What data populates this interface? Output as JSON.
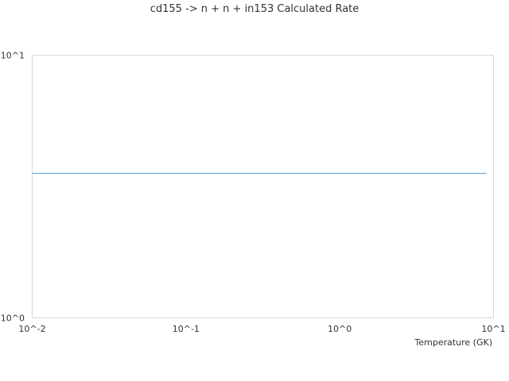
{
  "chart_data": {
    "type": "line",
    "title": "cd155 -> n + n + in153 Calculated Rate",
    "xlabel": "Temperature (GK)",
    "ylabel": "",
    "x_scale": "log",
    "y_scale": "log",
    "xlim": [
      0.01,
      10
    ],
    "ylim": [
      1,
      10
    ],
    "x_ticks": [
      {
        "value": 0.01,
        "label": "10^-2"
      },
      {
        "value": 0.1,
        "label": "10^-1"
      },
      {
        "value": 1,
        "label": "10^0"
      },
      {
        "value": 10,
        "label": "10^1"
      }
    ],
    "y_ticks": [
      {
        "value": 1,
        "label": "10^0"
      },
      {
        "value": 10,
        "label": "10^1"
      }
    ],
    "grid": false,
    "series": [
      {
        "color": "#5b9bd5",
        "x": [
          0.01,
          0.1,
          1,
          9
        ],
        "y": [
          3.55,
          3.55,
          3.55,
          3.55
        ]
      }
    ]
  }
}
